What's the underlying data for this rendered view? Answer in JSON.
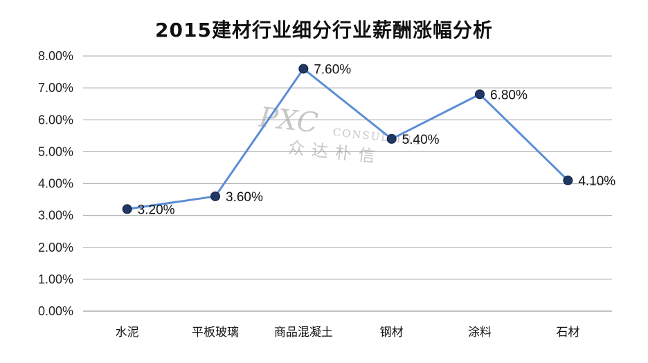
{
  "chart_data": {
    "type": "line",
    "title": "2015建材行业细分行业薪酬涨幅分析",
    "categories": [
      "水泥",
      "平板玻璃",
      "商品混凝土",
      "钢材",
      "涂料",
      "石材"
    ],
    "series": [
      {
        "values": [
          3.2,
          3.6,
          7.6,
          5.4,
          6.8,
          4.1
        ],
        "data_labels": [
          "3.20%",
          "3.60%",
          "7.60%",
          "5.40%",
          "6.80%",
          "4.10%"
        ]
      }
    ],
    "yticks": [
      "0.00%",
      "1.00%",
      "2.00%",
      "3.00%",
      "4.00%",
      "5.00%",
      "6.00%",
      "7.00%",
      "8.00%"
    ],
    "ylim": [
      0,
      8
    ],
    "ylabel": "",
    "xlabel": "",
    "grid": true,
    "legend": "none",
    "line_color": "#5b8ed6",
    "marker_color": "#1f3864"
  },
  "watermark": {
    "latin": "PXC",
    "sub": "CONSULTING",
    "cjk": "众达朴信"
  }
}
